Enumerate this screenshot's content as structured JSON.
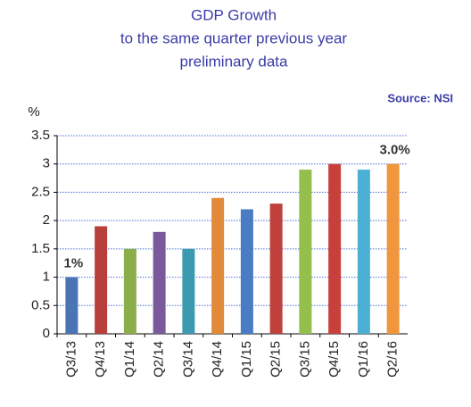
{
  "chart_data": {
    "type": "bar",
    "title": [
      "GDP Growth",
      "to the same quarter previous year",
      "preliminary data"
    ],
    "source": "Source: NSI",
    "y_label": "%",
    "categories": [
      "Q3/13",
      "Q4/13",
      "Q1/14",
      "Q2/14",
      "Q3/14",
      "Q4/14",
      "Q1/15",
      "Q2/15",
      "Q3/15",
      "Q4/15",
      "Q1/16",
      "Q2/16"
    ],
    "values": [
      1,
      1.9,
      1.5,
      1.8,
      1.5,
      2.4,
      2.2,
      2.3,
      2.9,
      3.0,
      2.9,
      3.0
    ],
    "value_labels": [
      "1%",
      null,
      null,
      null,
      null,
      null,
      null,
      null,
      null,
      null,
      null,
      "3.0%"
    ],
    "colors": [
      "#4a74b4",
      "#b8403c",
      "#8bad4c",
      "#7a5a9a",
      "#3c9ab0",
      "#e08a3a",
      "#4a7cc4",
      "#c0403c",
      "#94bf4c",
      "#c8403c",
      "#4cb0d4",
      "#f0963c"
    ],
    "ylim": [
      0,
      3.5
    ],
    "yticks": [
      0,
      0.5,
      1,
      1.5,
      2,
      2.5,
      3,
      3.5
    ],
    "grid": true
  }
}
